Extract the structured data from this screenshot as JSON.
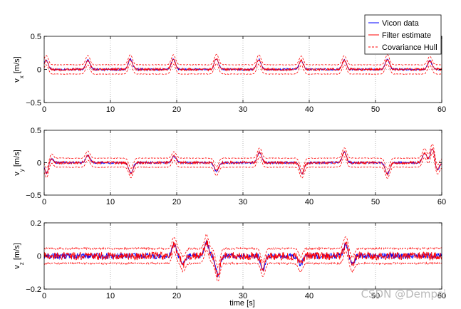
{
  "colors": {
    "vicon": "#0000ff",
    "filter": "#ff0000",
    "hull": "#ff0000",
    "grid": "#8c8c8c",
    "axis": "#000000"
  },
  "legend": {
    "placement": "top-right",
    "entries": [
      {
        "label": "Vicon data",
        "color": "#0000ff",
        "style": "solid"
      },
      {
        "label": "Filter estimate",
        "color": "#ff0000",
        "style": "solid"
      },
      {
        "label": "Covariance Hull",
        "color": "#ff0000",
        "style": "dashed"
      }
    ]
  },
  "xlabel": "time [s]",
  "watermark": "CSDN @Dempsi",
  "chart_data": [
    {
      "type": "line",
      "id": "vx",
      "ylabel_main": "v",
      "ylabel_sub": "x",
      "ylabel_unit": "[m/s]",
      "xlim": [
        0,
        60
      ],
      "ylim": [
        -0.5,
        0.5
      ],
      "xticks": [
        0,
        10,
        20,
        30,
        40,
        50,
        60
      ],
      "yticks": [
        -0.5,
        0,
        0.5
      ],
      "ytick_labels": [
        "−0.5",
        "0",
        "0.5"
      ],
      "grid": true,
      "baseline": 0.0,
      "hull_halfwidth": 0.07,
      "peaks": [
        {
          "t": 0.3,
          "v": 0.14
        },
        {
          "t": 6.6,
          "v": 0.14
        },
        {
          "t": 13.0,
          "v": 0.15
        },
        {
          "t": 19.5,
          "v": 0.15
        },
        {
          "t": 26.0,
          "v": 0.16
        },
        {
          "t": 32.4,
          "v": 0.15
        },
        {
          "t": 38.8,
          "v": 0.13
        },
        {
          "t": 45.3,
          "v": 0.14
        },
        {
          "t": 51.8,
          "v": 0.15
        },
        {
          "t": 58.2,
          "v": 0.13
        }
      ],
      "noise": 0.018,
      "series": [
        {
          "name": "Vicon data"
        },
        {
          "name": "Filter estimate"
        },
        {
          "name": "Covariance Hull"
        }
      ]
    },
    {
      "type": "line",
      "id": "vy",
      "ylabel_main": "v",
      "ylabel_sub": "y",
      "ylabel_unit": "[m/s]",
      "xlim": [
        0,
        60
      ],
      "ylim": [
        -0.5,
        0.5
      ],
      "xticks": [
        0,
        10,
        20,
        30,
        40,
        50,
        60
      ],
      "yticks": [
        -0.5,
        0,
        0.5
      ],
      "ytick_labels": [
        "−0.5",
        "0",
        "0.5"
      ],
      "grid": true,
      "baseline": 0.0,
      "hull_halfwidth": 0.07,
      "peaks": [
        {
          "t": 0.4,
          "v": -0.17
        },
        {
          "t": 1.0,
          "v": 0.08
        },
        {
          "t": 6.6,
          "v": 0.11
        },
        {
          "t": 13.1,
          "v": -0.16
        },
        {
          "t": 19.6,
          "v": 0.1
        },
        {
          "t": 26.0,
          "v": -0.13
        },
        {
          "t": 32.5,
          "v": 0.16
        },
        {
          "t": 38.9,
          "v": -0.17
        },
        {
          "t": 45.3,
          "v": 0.16
        },
        {
          "t": 51.8,
          "v": -0.17
        },
        {
          "t": 57.4,
          "v": 0.15
        },
        {
          "t": 58.6,
          "v": 0.23
        },
        {
          "t": 59.3,
          "v": -0.12
        }
      ],
      "noise": 0.02,
      "series": [
        {
          "name": "Vicon data"
        },
        {
          "name": "Filter estimate"
        },
        {
          "name": "Covariance Hull"
        }
      ]
    },
    {
      "type": "line",
      "id": "vz",
      "ylabel_main": "v",
      "ylabel_sub": "z",
      "ylabel_unit": "[m/s]",
      "xlim": [
        0,
        60
      ],
      "ylim": [
        -0.2,
        0.2
      ],
      "xticks": [
        0,
        10,
        20,
        30,
        40,
        50,
        60
      ],
      "yticks": [
        -0.2,
        0,
        0.2
      ],
      "ytick_labels": [
        "−0.2",
        "0",
        "0.2"
      ],
      "grid": true,
      "baseline": 0.0,
      "hull_halfwidth": 0.045,
      "peaks": [
        {
          "t": 19.6,
          "v": 0.07
        },
        {
          "t": 21.0,
          "v": -0.05
        },
        {
          "t": 24.5,
          "v": 0.08
        },
        {
          "t": 26.2,
          "v": -0.11
        },
        {
          "t": 33.0,
          "v": -0.08
        },
        {
          "t": 38.7,
          "v": -0.05
        },
        {
          "t": 45.5,
          "v": 0.07
        },
        {
          "t": 46.5,
          "v": -0.05
        }
      ],
      "noise": 0.022,
      "series": [
        {
          "name": "Vicon data"
        },
        {
          "name": "Filter estimate"
        },
        {
          "name": "Covariance Hull"
        }
      ]
    }
  ]
}
